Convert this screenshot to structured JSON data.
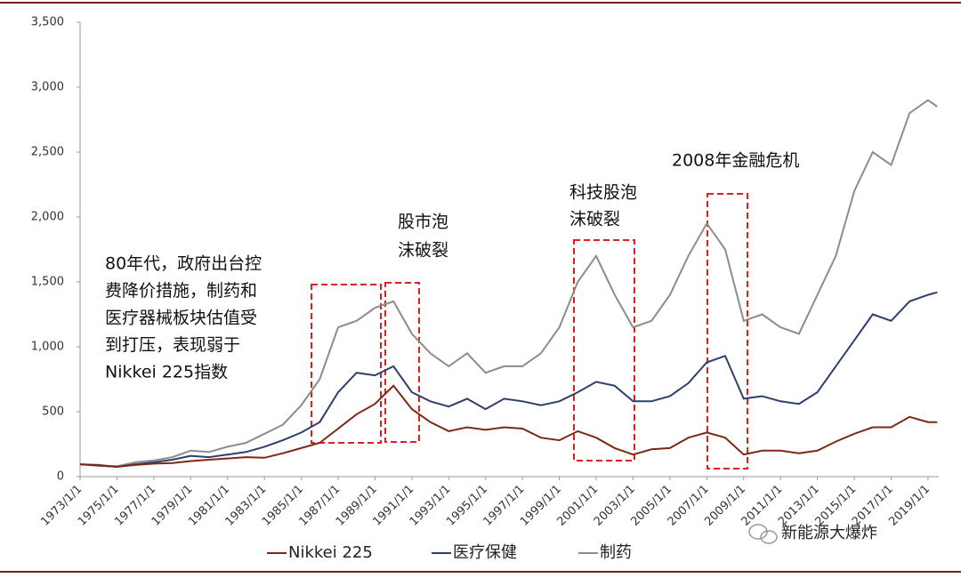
{
  "chart_data": {
    "type": "line",
    "x": [
      "1973/1/1",
      "1974/1/1",
      "1975/1/1",
      "1976/1/1",
      "1977/1/1",
      "1978/1/1",
      "1979/1/1",
      "1980/1/1",
      "1981/1/1",
      "1982/1/1",
      "1983/1/1",
      "1984/1/1",
      "1985/1/1",
      "1986/1/1",
      "1987/1/1",
      "1988/1/1",
      "1989/1/1",
      "1990/1/1",
      "1991/1/1",
      "1992/1/1",
      "1993/1/1",
      "1994/1/1",
      "1995/1/1",
      "1996/1/1",
      "1997/1/1",
      "1998/1/1",
      "1999/1/1",
      "2000/1/1",
      "2001/1/1",
      "2002/1/1",
      "2003/1/1",
      "2004/1/1",
      "2005/1/1",
      "2006/1/1",
      "2007/1/1",
      "2008/1/1",
      "2009/1/1",
      "2010/1/1",
      "2011/1/1",
      "2012/1/1",
      "2013/1/1",
      "2014/1/1",
      "2015/1/1",
      "2016/1/1",
      "2017/1/1",
      "2018/1/1",
      "2019/1/1",
      "2019/7/1"
    ],
    "series": [
      {
        "name": "Nikkei 225",
        "color": "#7b2a14",
        "values": [
          95,
          90,
          75,
          90,
          100,
          105,
          120,
          130,
          140,
          150,
          145,
          180,
          220,
          260,
          370,
          480,
          560,
          700,
          520,
          420,
          350,
          380,
          360,
          380,
          370,
          300,
          280,
          350,
          300,
          220,
          170,
          210,
          220,
          300,
          340,
          300,
          170,
          200,
          200,
          180,
          200,
          270,
          330,
          380,
          380,
          460,
          420,
          420
        ]
      },
      {
        "name": "医疗保健",
        "color": "#2e3f6e",
        "values": [
          95,
          85,
          75,
          95,
          110,
          130,
          160,
          150,
          170,
          190,
          230,
          280,
          340,
          420,
          650,
          800,
          780,
          850,
          650,
          580,
          540,
          600,
          520,
          600,
          580,
          550,
          580,
          650,
          730,
          700,
          580,
          580,
          620,
          720,
          880,
          930,
          600,
          620,
          580,
          560,
          650,
          850,
          1050,
          1250,
          1200,
          1350,
          1400,
          1420
        ]
      },
      {
        "name": "制药",
        "color": "#8c8c8c",
        "values": [
          95,
          85,
          80,
          110,
          125,
          150,
          200,
          190,
          230,
          260,
          330,
          400,
          550,
          750,
          1150,
          1200,
          1300,
          1350,
          1100,
          950,
          850,
          950,
          800,
          850,
          850,
          950,
          1150,
          1500,
          1700,
          1400,
          1150,
          1200,
          1400,
          1700,
          1950,
          1750,
          1200,
          1250,
          1150,
          1100,
          1400,
          1700,
          2200,
          2500,
          2400,
          2800,
          2900,
          2850
        ]
      }
    ],
    "xlim": [
      "1973/1/1",
      "2019/8/1"
    ],
    "xticks": [
      "1973/1/1",
      "1975/1/1",
      "1977/1/1",
      "1979/1/1",
      "1981/1/1",
      "1983/1/1",
      "1985/1/1",
      "1987/1/1",
      "1989/1/1",
      "1991/1/1",
      "1993/1/1",
      "1995/1/1",
      "1997/1/1",
      "1999/1/1",
      "2001/1/1",
      "2003/1/1",
      "2005/1/1",
      "2007/1/1",
      "2009/1/1",
      "2011/1/1",
      "2013/1/1",
      "2015/1/1",
      "2017/1/1",
      "2019/1/1"
    ],
    "ylim": [
      0,
      3500
    ],
    "yticks": [
      0,
      500,
      {
        "value": 1000,
        "label": "1,000"
      },
      {
        "value": 1500,
        "label": "1,500"
      },
      {
        "value": 2000,
        "label": "2,000"
      },
      {
        "value": 2500,
        "label": "2,500"
      },
      {
        "value": 3000,
        "label": "3,000"
      },
      {
        "value": 3500,
        "label": "3,500"
      }
    ],
    "annotations": [
      [
        "80年代，政府出台控",
        "费降价措施，制药和",
        "医疗器械板块估值受",
        "到打压，表现弱于",
        "Nikkei 225指数"
      ],
      [
        "股市泡",
        "沫破裂"
      ],
      [
        "科技股泡",
        "沫破裂"
      ],
      [
        "2008年金融危机"
      ]
    ],
    "watermark": "新能源大爆炸",
    "grid": false
  }
}
